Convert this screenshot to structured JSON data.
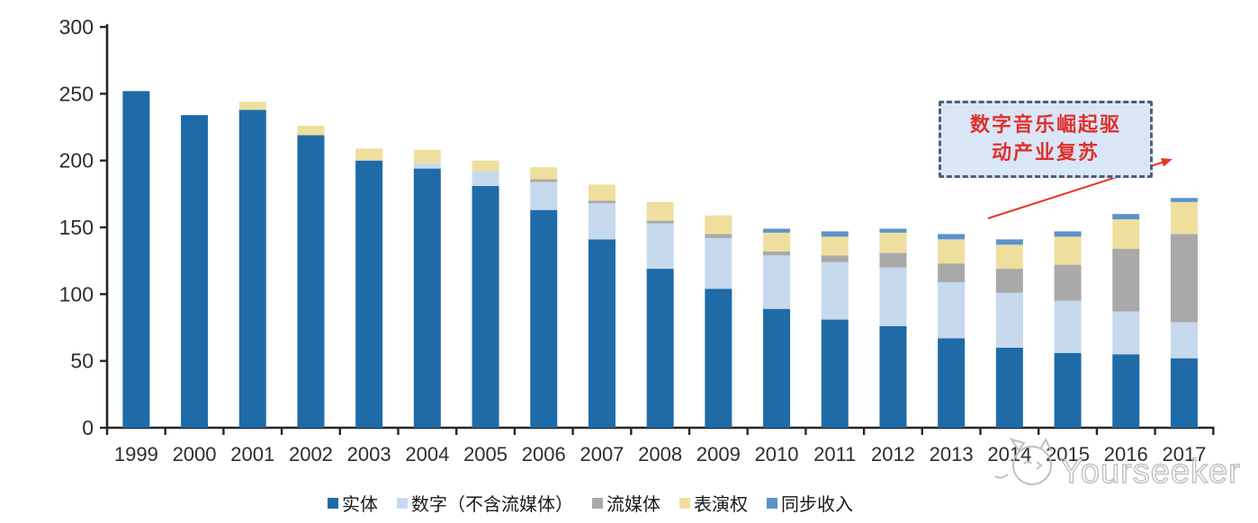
{
  "chart_data": {
    "type": "bar",
    "stacked": true,
    "title": "",
    "xlabel": "",
    "ylabel": "",
    "categories": [
      "1999",
      "2000",
      "2001",
      "2002",
      "2003",
      "2004",
      "2005",
      "2006",
      "2007",
      "2008",
      "2009",
      "2010",
      "2011",
      "2012",
      "2013",
      "2014",
      "2015",
      "2016",
      "2017"
    ],
    "series": [
      {
        "name": "实体",
        "color": "#1e6ba8",
        "values": [
          252,
          234,
          238,
          219,
          200,
          194,
          181,
          163,
          141,
          119,
          104,
          89,
          81,
          76,
          67,
          60,
          56,
          55,
          52
        ]
      },
      {
        "name": "数字（不含流媒体）",
        "color": "#c7d9ed",
        "values": [
          0,
          0,
          0,
          0,
          0,
          4,
          11,
          21,
          27,
          34,
          38,
          40,
          43,
          44,
          42,
          41,
          39,
          32,
          27
        ]
      },
      {
        "name": "流媒体",
        "color": "#a9a9a9",
        "values": [
          0,
          0,
          0,
          0,
          0,
          0,
          0,
          2,
          2,
          2,
          3,
          3,
          5,
          11,
          14,
          18,
          27,
          47,
          66
        ]
      },
      {
        "name": "表演权",
        "color": "#efdf9f",
        "values": [
          0,
          0,
          6,
          7,
          9,
          10,
          8,
          9,
          12,
          14,
          14,
          14,
          14,
          15,
          18,
          18,
          21,
          22,
          24
        ]
      },
      {
        "name": "同步收入",
        "color": "#5b93cc",
        "values": [
          0,
          0,
          0,
          0,
          0,
          0,
          0,
          0,
          0,
          0,
          0,
          3,
          4,
          3,
          4,
          4,
          4,
          4,
          3
        ]
      }
    ],
    "ylim": [
      0,
      300
    ],
    "ytick_labels": [
      "0",
      "50",
      "100",
      "150",
      "200",
      "250",
      "300"
    ],
    "ytick_values": [
      0,
      50,
      100,
      150,
      200,
      250,
      300
    ],
    "grid": false,
    "legend_position": "bottom",
    "axis_color": "#262626",
    "tick_label_color": "#2d2d2d"
  },
  "annotation": {
    "line1": "数字音乐崛起驱",
    "line2": "动产业复苏",
    "text_color": "#e0302e",
    "box_fill": "#d9e6f5",
    "box_border": "#4f5f7a",
    "arrow_color": "#ec3323"
  },
  "watermark": {
    "text": "Yourseeker",
    "color": "#bfbfbf",
    "logo_icon": "cat-face-logo"
  }
}
